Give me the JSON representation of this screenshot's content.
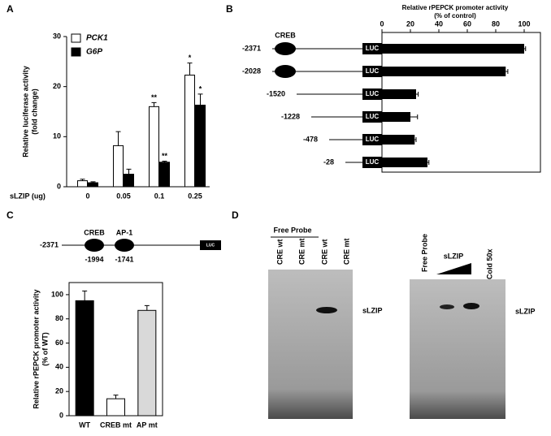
{
  "panels": [
    "A",
    "B",
    "C",
    "D"
  ],
  "chart_data": [
    {
      "type": "bar",
      "y_label": [
        "Relative luciferase activity",
        "(fold change)"
      ],
      "x_label": "sLZIP (ug)",
      "categories": [
        "0",
        "0.05",
        "0.1",
        "0.25"
      ],
      "series": [
        {
          "name": "PCK1",
          "color": "#ffffff",
          "values": [
            1.2,
            8.2,
            16,
            22.3
          ],
          "errors": [
            0.3,
            2.8,
            0.8,
            2.4
          ],
          "annotations": [
            null,
            null,
            "**",
            "*"
          ]
        },
        {
          "name": "G6P",
          "color": "#000000",
          "values": [
            0.8,
            2.5,
            4.9,
            16.3
          ],
          "errors": [
            0.2,
            1.0,
            0.2,
            2.2
          ],
          "annotations": [
            null,
            null,
            "**",
            "*"
          ]
        }
      ],
      "ylim": [
        0,
        30
      ],
      "yticks": [
        0,
        10,
        20,
        30
      ]
    },
    {
      "type": "hbar",
      "title": [
        "Relative rPEPCK promoter activity",
        "(% of control)"
      ],
      "categories": [
        "-2371",
        "-2028",
        "-1520",
        "-1228",
        "-478",
        "-28"
      ],
      "values": [
        100,
        87,
        24,
        20,
        23,
        32
      ],
      "errors": [
        1,
        1.5,
        1.5,
        5,
        1,
        1
      ],
      "color": "#000000",
      "xlim": [
        0,
        100
      ],
      "xticks": [
        0,
        20,
        40,
        60,
        80,
        100
      ],
      "construct_labels": {
        "creb": "CREB",
        "luc": "LUC"
      }
    },
    {
      "type": "bar",
      "y_label": [
        "Relative rPEPCK promoter activity",
        "(% of WT)"
      ],
      "categories": [
        "WT",
        "CREB mt",
        "AP mt"
      ],
      "values": [
        95,
        14,
        87
      ],
      "errors": [
        8,
        3,
        4
      ],
      "colors": [
        "#000000",
        "#ffffff",
        "#d9d9d9"
      ],
      "ylim": [
        0,
        110
      ],
      "yticks": [
        0,
        20,
        40,
        60,
        80,
        100
      ]
    }
  ],
  "diagram_c": {
    "start": "-2371",
    "elements": [
      {
        "label": "CREB",
        "position": "-1994"
      },
      {
        "label": "AP-1",
        "position": "-1741"
      }
    ],
    "reporter": "LUC"
  },
  "gels": [
    {
      "group": "Free Probe",
      "lanes": [
        "CRE wt",
        "CRE mt",
        "CRE wt",
        "CRE mt"
      ],
      "band": "sLZIP"
    },
    {
      "lanes": [
        "Free Probe",
        "sLZIP",
        "Cold 50x"
      ],
      "band": "sLZIP"
    }
  ]
}
